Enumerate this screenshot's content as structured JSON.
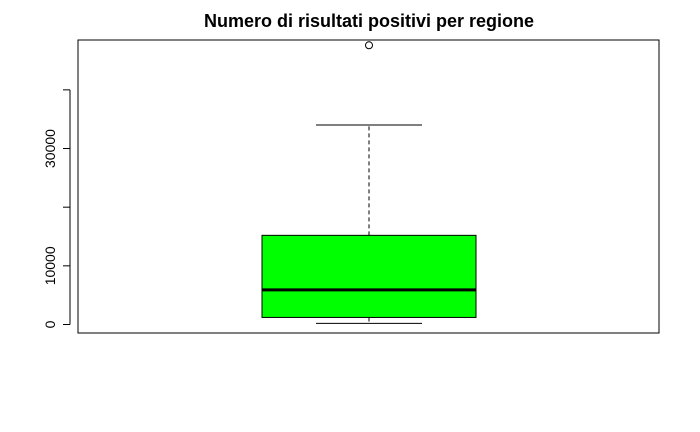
{
  "chart_data": {
    "type": "box",
    "title": "Numero di risultati positivi per regione",
    "xlabel": "",
    "ylabel": "",
    "ylim": [
      -1450,
      48500
    ],
    "yticks": [
      0,
      10000,
      20000,
      30000,
      40000
    ],
    "ytick_labels": [
      "0",
      "10000",
      "",
      "30000",
      ""
    ],
    "box": {
      "lower_whisker": 200,
      "q1": 1200,
      "median": 5900,
      "q3": 15200,
      "upper_whisker": 34000,
      "outliers": [
        47600
      ]
    },
    "colors": {
      "box_fill": "#00ff00",
      "stroke": "#000000"
    },
    "grid": false,
    "legend": "none"
  }
}
